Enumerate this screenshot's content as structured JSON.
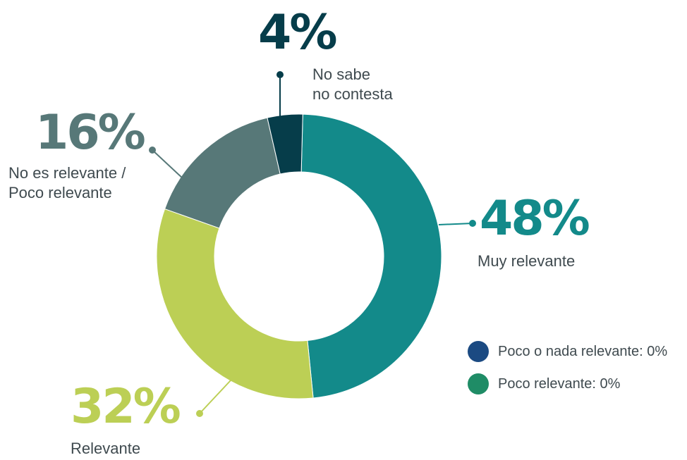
{
  "chart_data": {
    "type": "pie",
    "categories": [
      "Muy relevante",
      "Relevante",
      "No es relevante / Poco relevante",
      "No sabe no contesta"
    ],
    "values": [
      48,
      32,
      16,
      4
    ],
    "value_labels": [
      "48%",
      "32%",
      "16%",
      "4%"
    ],
    "colors": [
      "#138a8a",
      "#bccf55",
      "#577878",
      "#063d4a"
    ],
    "donut": true
  },
  "labels": {
    "muy_relevante": {
      "pct": "48%",
      "line1": "Muy relevante"
    },
    "relevante": {
      "pct": "32%",
      "line1": "Relevante"
    },
    "no_relevante": {
      "pct": "16%",
      "line1": "No es relevante /",
      "line2": "Poco relevante"
    },
    "no_sabe": {
      "pct": "4%",
      "line1": "No sabe",
      "line2": "no contesta"
    }
  },
  "legend": [
    {
      "text": "Poco o nada relevante: 0%",
      "color": "#1b4a82"
    },
    {
      "text": "Poco relevante: 0%",
      "color": "#1f8c66"
    }
  ]
}
